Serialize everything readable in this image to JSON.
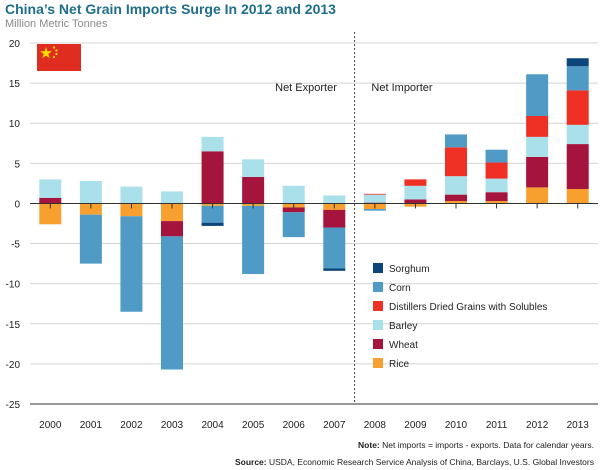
{
  "header": {
    "title": "China’s Net Grain Imports Surge In 2012 and 2013",
    "subtitle": "Million Metric Tonnes"
  },
  "annotations": {
    "net_exporter": "Net Exporter",
    "net_importer": "Net Importer"
  },
  "footer": {
    "note_label": "Note:",
    "note_text": " Net imports = imports - exports. Data for calendar years.",
    "source_label": "Source:",
    "source_text": " USDA, Economic Research Service Analysis of China, Barclays, U.S. Global Investors"
  },
  "chart_data": {
    "type": "bar",
    "stacked": true,
    "categories": [
      "2000",
      "2001",
      "2002",
      "2003",
      "2004",
      "2005",
      "2006",
      "2007",
      "2008",
      "2009",
      "2010",
      "2011",
      "2012",
      "2013"
    ],
    "ylim": [
      -25,
      20
    ],
    "yticks": [
      20,
      15,
      10,
      5,
      0,
      -5,
      -10,
      -15,
      -20,
      -25
    ],
    "divider_between": [
      "2007",
      "2008"
    ],
    "legend_position": "right",
    "series": [
      {
        "name": "Rice",
        "color": "#f7a030",
        "values": [
          -2.6,
          -1.4,
          -1.6,
          -2.2,
          -0.3,
          -0.3,
          -0.5,
          -0.8,
          -0.7,
          -0.4,
          0.3,
          0.3,
          2.0,
          1.8
        ]
      },
      {
        "name": "Wheat",
        "color": "#a4143c",
        "values": [
          0.7,
          0.0,
          0.0,
          -1.9,
          6.5,
          3.3,
          -0.6,
          -2.2,
          0.1,
          0.5,
          0.8,
          1.1,
          3.8,
          5.6
        ]
      },
      {
        "name": "Barley",
        "color": "#a9e0ea",
        "values": [
          2.3,
          2.8,
          2.1,
          1.5,
          1.8,
          2.2,
          2.2,
          1.0,
          1.0,
          1.7,
          2.3,
          1.7,
          2.5,
          2.4
        ]
      },
      {
        "name": "Distillers Dried Grains with Solubles",
        "color": "#ee3124",
        "values": [
          0.0,
          0.0,
          0.0,
          0.0,
          0.0,
          0.0,
          0.0,
          0.0,
          0.1,
          0.8,
          3.6,
          2.0,
          2.6,
          4.3
        ]
      },
      {
        "name": "Corn",
        "color": "#4f9bc6",
        "values": [
          0.0,
          -6.1,
          -11.9,
          -16.6,
          -2.1,
          -8.5,
          -3.1,
          -5.1,
          -0.2,
          0.0,
          1.6,
          1.6,
          5.2,
          3.0
        ]
      },
      {
        "name": "Sorghum",
        "color": "#0b4579",
        "values": [
          0.0,
          0.0,
          0.0,
          0.0,
          -0.4,
          0.0,
          0.0,
          -0.3,
          0.0,
          0.0,
          0.0,
          0.0,
          0.0,
          1.0
        ]
      }
    ]
  }
}
